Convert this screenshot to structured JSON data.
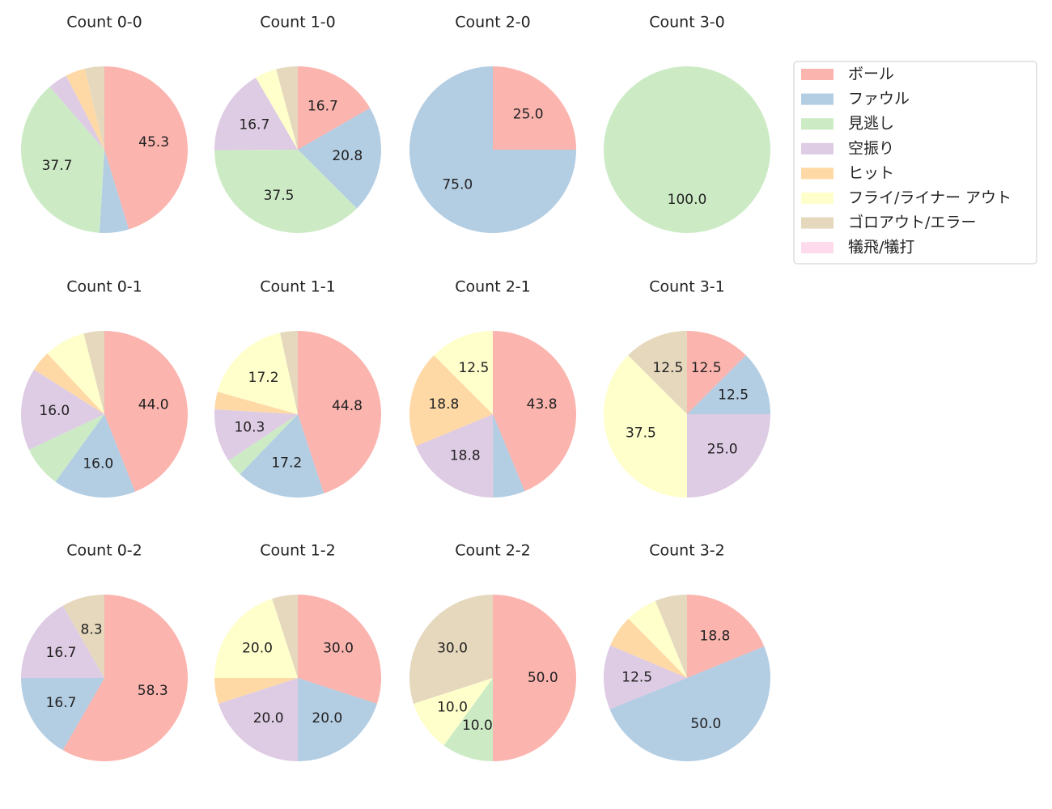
{
  "chart_data": [
    {
      "type": "pie",
      "title": "Count 0-0",
      "values": [
        45.3,
        5.7,
        37.7,
        3.8,
        3.8,
        0,
        3.8,
        0
      ],
      "value_labels": [
        "45.3",
        null,
        "37.7",
        null,
        null,
        null,
        null,
        null
      ]
    },
    {
      "type": "pie",
      "title": "Count 1-0",
      "values": [
        16.7,
        20.8,
        37.5,
        16.7,
        0,
        4.2,
        4.2,
        0
      ],
      "value_labels": [
        "16.7",
        "20.8",
        "37.5",
        "16.7",
        null,
        null,
        null,
        null
      ]
    },
    {
      "type": "pie",
      "title": "Count 2-0",
      "values": [
        25.0,
        75.0,
        0,
        0,
        0,
        0,
        0,
        0
      ],
      "value_labels": [
        "25.0",
        "75.0",
        null,
        null,
        null,
        null,
        null,
        null
      ]
    },
    {
      "type": "pie",
      "title": "Count 3-0",
      "values": [
        0,
        0,
        100,
        0,
        0,
        0,
        0,
        0
      ],
      "value_labels": [
        null,
        null,
        "100.0",
        null,
        null,
        null,
        null,
        null
      ]
    },
    {
      "type": "pie",
      "title": "Count 0-1",
      "values": [
        44.0,
        16.0,
        8.0,
        16.0,
        4.0,
        8.0,
        4.0,
        0
      ],
      "value_labels": [
        "44.0",
        "16.0",
        null,
        "16.0",
        null,
        null,
        null,
        null
      ]
    },
    {
      "type": "pie",
      "title": "Count 1-1",
      "values": [
        44.8,
        17.2,
        3.4,
        10.3,
        3.4,
        17.2,
        3.4,
        0
      ],
      "value_labels": [
        "44.8",
        "17.2",
        null,
        "10.3",
        null,
        "17.2",
        null,
        null
      ]
    },
    {
      "type": "pie",
      "title": "Count 2-1",
      "values": [
        43.8,
        6.2,
        0,
        18.8,
        18.8,
        12.5,
        0,
        0
      ],
      "value_labels": [
        "43.8",
        null,
        null,
        "18.8",
        "18.8",
        "12.5",
        null,
        null
      ]
    },
    {
      "type": "pie",
      "title": "Count 3-1",
      "values": [
        12.5,
        12.5,
        0,
        25.0,
        0,
        37.5,
        12.5,
        0
      ],
      "value_labels": [
        "12.5",
        "12.5",
        null,
        "25.0",
        null,
        "37.5",
        "12.5",
        null
      ]
    },
    {
      "type": "pie",
      "title": "Count 0-2",
      "values": [
        58.3,
        16.7,
        0,
        16.7,
        0,
        0,
        8.3,
        0
      ],
      "value_labels": [
        "58.3",
        "16.7",
        null,
        "16.7",
        null,
        null,
        "8.3",
        null
      ]
    },
    {
      "type": "pie",
      "title": "Count 1-2",
      "values": [
        30.0,
        20.0,
        0,
        20.0,
        5.0,
        20.0,
        5.0,
        0
      ],
      "value_labels": [
        "30.0",
        "20.0",
        null,
        "20.0",
        null,
        "20.0",
        null,
        null
      ]
    },
    {
      "type": "pie",
      "title": "Count 2-2",
      "values": [
        50.0,
        0,
        10.0,
        0,
        0,
        10.0,
        30.0,
        0
      ],
      "value_labels": [
        "50.0",
        null,
        "10.0",
        null,
        null,
        "10.0",
        "30.0",
        null
      ]
    },
    {
      "type": "pie",
      "title": "Count 3-2",
      "values": [
        18.8,
        50.0,
        0,
        12.5,
        6.2,
        6.2,
        6.2,
        0
      ],
      "value_labels": [
        "18.8",
        "50.0",
        null,
        "12.5",
        null,
        null,
        null,
        null
      ]
    }
  ],
  "legend": {
    "categories": [
      "ボール",
      "ファウル",
      "見逃し",
      "空振り",
      "ヒット",
      "フライ/ライナー アウト",
      "ゴロアウト/エラー",
      "犠飛/犠打"
    ],
    "colors": [
      "#fbb4ae",
      "#b3cde3",
      "#ccebc5",
      "#decbe4",
      "#fed9a6",
      "#ffffcc",
      "#e5d8bd",
      "#fddaec"
    ]
  }
}
